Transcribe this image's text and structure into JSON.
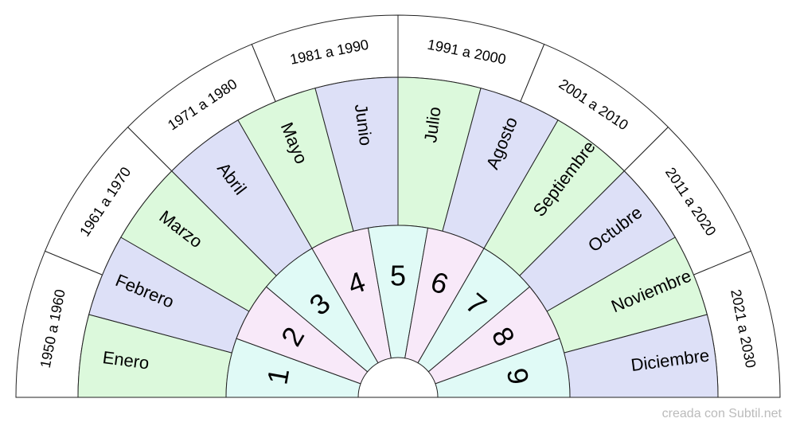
{
  "decades": [
    "1950 a 1960",
    "1961 a 1970",
    "1971 a 1980",
    "1981 a 1990",
    "1991 a 2000",
    "2001 a 2010",
    "2011 a 2020",
    "2021 a 2030"
  ],
  "months": [
    "Enero",
    "Febrero",
    "Marzo",
    "Abril",
    "Mayo",
    "Junio",
    "Julio",
    "Agosto",
    "Septiembre",
    "Octubre",
    "Noviembre",
    "Diciembre"
  ],
  "numbers": [
    "1",
    "2",
    "3",
    "4",
    "5",
    "6",
    "7",
    "8",
    "9"
  ],
  "footer": "creada con Subtil.net"
}
